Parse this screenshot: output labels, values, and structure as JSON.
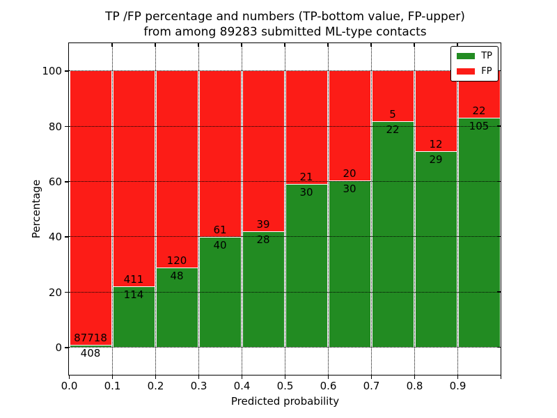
{
  "chart_data": {
    "type": "bar",
    "variant": "stacked-percentage-histogram",
    "title_line1": "TP /FP percentage and numbers (TP-bottom value, FP-upper)",
    "title_line2": "from among 89283 submitted ML-type contacts",
    "xlabel": "Predicted probability",
    "ylabel": "Percentage",
    "total_submitted_contacts": 89283,
    "x_tick_labels": [
      "0.0",
      "0.1",
      "0.2",
      "0.3",
      "0.4",
      "0.5",
      "0.6",
      "0.7",
      "0.8",
      "0.9"
    ],
    "x_bin_width": 0.1,
    "xlim": [
      0.0,
      1.0
    ],
    "y_tick_values": [
      0,
      20,
      40,
      60,
      80,
      100
    ],
    "ylim": [
      -10,
      110
    ],
    "grid": "dotted",
    "legend_position": "upper-right",
    "series": [
      {
        "name": "TP",
        "color": "#228b22",
        "counts": [
          408,
          114,
          48,
          40,
          28,
          30,
          30,
          22,
          29,
          105
        ]
      },
      {
        "name": "FP",
        "color": "#fc1c17",
        "counts": [
          87718,
          411,
          120,
          61,
          39,
          21,
          20,
          5,
          12,
          22
        ]
      }
    ],
    "tp_percent_of_bin": [
      0.46,
      21.71,
      28.57,
      39.6,
      41.79,
      58.82,
      60.0,
      81.48,
      70.73,
      82.68
    ],
    "colors": {
      "tp": "#228b22",
      "fp": "#fc1c17",
      "grid": "#000000",
      "background": "#ffffff"
    }
  }
}
